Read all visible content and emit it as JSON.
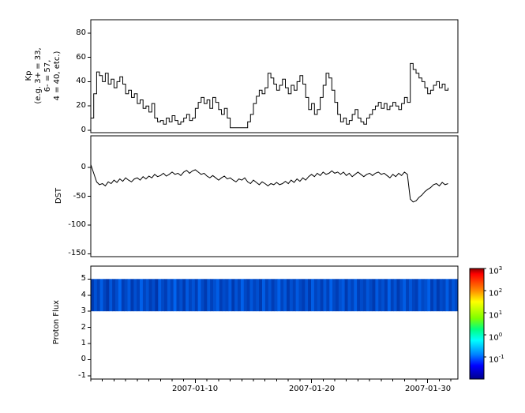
{
  "figure": {
    "background": "#ffffff",
    "axis_color": "#000000",
    "trace_color": "#000000"
  },
  "x_axis": {
    "tick_labels": [
      "2007-01-10",
      "2007-01-20",
      "2007-01-30"
    ],
    "tick_days": [
      9,
      19,
      29
    ],
    "minor_day_step": 1,
    "range_days": [
      0,
      31.6
    ]
  },
  "chart_data": [
    {
      "type": "line",
      "name": "Kp",
      "ylabel": "Kp\n(e.g. 3+ = 33,\n6- = 57,\n4 = 40, etc.)",
      "style": "steps",
      "ylim": [
        -2,
        91
      ],
      "yticks": [
        80,
        60,
        40,
        20,
        0
      ],
      "x_start": "2007-01-01",
      "x_step_days": 0.25,
      "values": [
        10,
        30,
        48,
        45,
        40,
        47,
        38,
        42,
        35,
        40,
        44,
        38,
        30,
        33,
        27,
        30,
        22,
        25,
        18,
        20,
        15,
        22,
        10,
        7,
        8,
        5,
        10,
        7,
        12,
        8,
        5,
        7,
        10,
        13,
        8,
        10,
        18,
        23,
        27,
        22,
        25,
        18,
        27,
        23,
        17,
        13,
        18,
        10,
        2,
        2,
        2,
        2,
        2,
        2,
        7,
        13,
        22,
        28,
        33,
        30,
        35,
        47,
        43,
        38,
        33,
        37,
        42,
        35,
        30,
        37,
        33,
        40,
        45,
        38,
        27,
        17,
        22,
        13,
        17,
        27,
        37,
        47,
        43,
        33,
        23,
        13,
        7,
        10,
        5,
        8,
        13,
        17,
        10,
        7,
        5,
        10,
        13,
        17,
        20,
        23,
        18,
        22,
        17,
        20,
        23,
        20,
        17,
        22,
        27,
        23,
        55,
        50,
        47,
        43,
        40,
        35,
        30,
        33,
        37,
        40,
        35,
        38,
        33,
        35
      ]
    },
    {
      "type": "line",
      "name": "DST",
      "ylabel": "DST",
      "style": "line",
      "ylim": [
        -155,
        55
      ],
      "yticks": [
        0,
        -50,
        -100,
        -150
      ],
      "x_start": "2007-01-01",
      "x_step_days": 0.25,
      "values": [
        5,
        -10,
        -25,
        -30,
        -28,
        -32,
        -25,
        -28,
        -22,
        -26,
        -20,
        -24,
        -18,
        -22,
        -25,
        -20,
        -18,
        -22,
        -16,
        -20,
        -15,
        -18,
        -12,
        -16,
        -14,
        -10,
        -15,
        -12,
        -8,
        -12,
        -10,
        -14,
        -8,
        -5,
        -10,
        -6,
        -4,
        -8,
        -12,
        -10,
        -15,
        -18,
        -14,
        -18,
        -22,
        -18,
        -15,
        -20,
        -18,
        -22,
        -25,
        -20,
        -22,
        -18,
        -25,
        -28,
        -22,
        -26,
        -30,
        -25,
        -28,
        -32,
        -28,
        -30,
        -26,
        -30,
        -28,
        -24,
        -28,
        -22,
        -26,
        -20,
        -24,
        -18,
        -22,
        -16,
        -12,
        -16,
        -10,
        -14,
        -8,
        -12,
        -10,
        -6,
        -10,
        -8,
        -12,
        -8,
        -14,
        -10,
        -16,
        -12,
        -8,
        -12,
        -16,
        -12,
        -10,
        -14,
        -10,
        -8,
        -12,
        -10,
        -14,
        -18,
        -12,
        -16,
        -10,
        -14,
        -8,
        -12,
        -55,
        -60,
        -58,
        -52,
        -48,
        -42,
        -38,
        -35,
        -30,
        -28,
        -32,
        -26,
        -30,
        -28
      ]
    },
    {
      "type": "heatmap",
      "name": "Proton Flux",
      "ylabel": "Proton Flux",
      "ylim": [
        -1.2,
        5.8
      ],
      "yticks": [
        5,
        4,
        3,
        2,
        1,
        0,
        -1
      ],
      "band": {
        "y_min": 3,
        "y_max": 5
      },
      "column_intensities": [
        0.25,
        0.6,
        0.35,
        0.75,
        0.4,
        0.2,
        0.65,
        0.3,
        0.5,
        0.85,
        0.3,
        0.45,
        0.7,
        0.25,
        0.55,
        0.35,
        0.8,
        0.4,
        0.6,
        0.3,
        0.5,
        0.2,
        0.75,
        0.45,
        0.3,
        0.65,
        0.4,
        0.85,
        0.35,
        0.55,
        0.25,
        0.7,
        0.4,
        0.6,
        0.3,
        0.8,
        0.45,
        0.25,
        0.65,
        0.35,
        0.55,
        0.75,
        0.3,
        0.5,
        0.4,
        0.7,
        0.25,
        0.6,
        0.35,
        0.8,
        0.45,
        0.3,
        0.65,
        0.4,
        0.55,
        0.25,
        0.75,
        0.35,
        0.6,
        0.3,
        0.5,
        0.8,
        0.4,
        0.65,
        0.25,
        0.55,
        0.35,
        0.7,
        0.45,
        0.3,
        0.6,
        0.25,
        0.75,
        0.4,
        0.55,
        0.3,
        0.65,
        0.35,
        0.8,
        0.45,
        0.3,
        0.55,
        0.7,
        0.25,
        0.6,
        0.4,
        0.75,
        0.3,
        0.5,
        0.35,
        0.65,
        0.45,
        0.25,
        0.7,
        0.4,
        0.55,
        0.3,
        0.8,
        0.35,
        0.6,
        0.25,
        0.5,
        0.75,
        0.35,
        0.65,
        0.4,
        0.3,
        0.7,
        0.45,
        0.55,
        0.8,
        0.3,
        0.6,
        0.25,
        0.5,
        0.4,
        0.75,
        0.35,
        0.65,
        0.45
      ],
      "colorbar": {
        "scale": "log",
        "colormap": "jet",
        "tick_labels": [
          "10^3",
          "10^2",
          "10^1",
          "10^0",
          "10^-1"
        ]
      }
    }
  ]
}
